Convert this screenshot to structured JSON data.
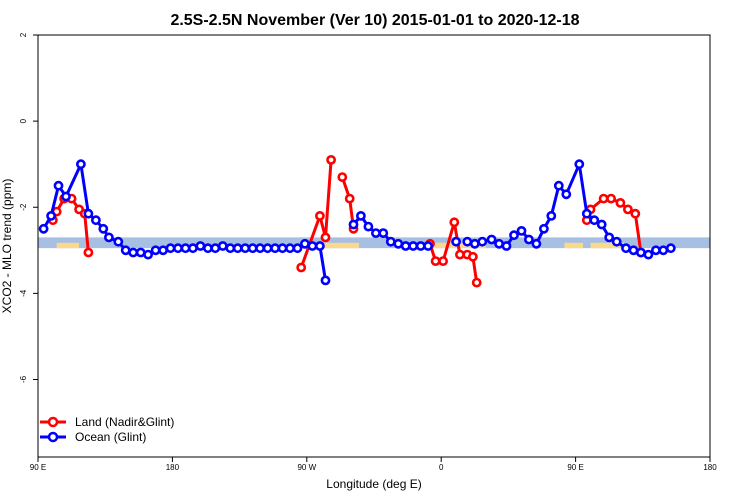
{
  "chart_data": {
    "type": "line",
    "title": "2.5S-2.5N November (Ver 10)   2015-01-01 to 2020-12-18",
    "xlabel": "Longitude (deg E)",
    "ylabel": "XCO2 - MLO trend (ppm)",
    "xlim": [
      90,
      450
    ],
    "ylim": [
      -7.8,
      2.0
    ],
    "x_ticks": [
      {
        "value": 90,
        "label": "90 E"
      },
      {
        "value": 162,
        "label": "180"
      },
      {
        "value": 234,
        "label": "90 W"
      },
      {
        "value": 306,
        "label": "0"
      },
      {
        "value": 378,
        "label": "90 E"
      },
      {
        "value": 450,
        "label": "180"
      }
    ],
    "y_ticks": [
      {
        "value": 2,
        "label": "2"
      },
      {
        "value": 0,
        "label": "0"
      },
      {
        "value": -2,
        "label": "-2"
      },
      {
        "value": -4,
        "label": "-4"
      },
      {
        "value": -6,
        "label": "-6"
      }
    ],
    "legend_position": "bottom-left",
    "band": {
      "y_min": -2.95,
      "y_max": -2.7,
      "ocean_color": "#a7bfe2",
      "land_color": "#fbd88a"
    },
    "series": [
      {
        "name": "Land (Nadir&Glint)",
        "color": "#ff0000",
        "segments": [
          [
            [
              98,
              -2.3
            ],
            [
              100,
              -2.1
            ],
            [
              104,
              -1.8
            ],
            [
              108,
              -1.8
            ],
            [
              112,
              -2.05
            ],
            [
              115,
              -2.15
            ],
            [
              117,
              -3.05
            ]
          ],
          [
            [
              231,
              -3.4
            ],
            [
              241,
              -2.2
            ],
            [
              244,
              -2.7
            ],
            [
              247,
              -0.9
            ]
          ],
          [
            [
              253,
              -1.3
            ],
            [
              257,
              -1.8
            ],
            [
              259,
              -2.5
            ]
          ],
          [
            [
              300,
              -2.85
            ],
            [
              303,
              -3.25
            ],
            [
              307,
              -3.25
            ],
            [
              313,
              -2.35
            ],
            [
              316,
              -3.1
            ],
            [
              320,
              -3.1
            ],
            [
              323,
              -3.15
            ],
            [
              325,
              -3.75
            ]
          ],
          [
            [
              384,
              -2.3
            ],
            [
              386,
              -2.05
            ],
            [
              393,
              -1.8
            ],
            [
              397,
              -1.8
            ],
            [
              402,
              -1.9
            ],
            [
              406,
              -2.05
            ],
            [
              410,
              -2.15
            ],
            [
              413,
              -3.05
            ]
          ]
        ]
      },
      {
        "name": "Ocean (Glint)",
        "color": "#0000ff",
        "segments": [
          [
            [
              93,
              -2.5
            ],
            [
              97,
              -2.2
            ],
            [
              101,
              -1.5
            ],
            [
              105,
              -1.75
            ],
            [
              113,
              -1.0
            ],
            [
              117,
              -2.15
            ],
            [
              121,
              -2.3
            ],
            [
              125,
              -2.5
            ],
            [
              128,
              -2.7
            ],
            [
              133,
              -2.8
            ],
            [
              137,
              -3.0
            ],
            [
              141,
              -3.05
            ],
            [
              145,
              -3.05
            ],
            [
              149,
              -3.1
            ],
            [
              153,
              -3.0
            ],
            [
              157,
              -3.0
            ],
            [
              161,
              -2.95
            ],
            [
              165,
              -2.95
            ],
            [
              169,
              -2.95
            ],
            [
              173,
              -2.95
            ],
            [
              177,
              -2.9
            ],
            [
              181,
              -2.95
            ],
            [
              185,
              -2.95
            ],
            [
              189,
              -2.9
            ],
            [
              193,
              -2.95
            ],
            [
              197,
              -2.95
            ],
            [
              201,
              -2.95
            ],
            [
              205,
              -2.95
            ],
            [
              209,
              -2.95
            ],
            [
              213,
              -2.95
            ],
            [
              217,
              -2.95
            ],
            [
              221,
              -2.95
            ],
            [
              225,
              -2.95
            ],
            [
              229,
              -2.95
            ],
            [
              233,
              -2.85
            ],
            [
              237,
              -2.9
            ],
            [
              241,
              -2.9
            ],
            [
              244,
              -3.7
            ]
          ],
          [
            [
              259,
              -2.4
            ],
            [
              263,
              -2.2
            ],
            [
              267,
              -2.45
            ],
            [
              271,
              -2.6
            ],
            [
              275,
              -2.6
            ],
            [
              279,
              -2.8
            ],
            [
              283,
              -2.85
            ],
            [
              287,
              -2.9
            ],
            [
              291,
              -2.9
            ],
            [
              295,
              -2.9
            ],
            [
              299,
              -2.9
            ]
          ],
          [
            [
              314,
              -2.8
            ]
          ],
          [
            [
              320,
              -2.8
            ],
            [
              324,
              -2.85
            ],
            [
              328,
              -2.8
            ],
            [
              333,
              -2.75
            ],
            [
              337,
              -2.85
            ],
            [
              341,
              -2.9
            ],
            [
              345,
              -2.65
            ],
            [
              349,
              -2.55
            ],
            [
              353,
              -2.75
            ],
            [
              357,
              -2.85
            ],
            [
              361,
              -2.5
            ],
            [
              365,
              -2.2
            ],
            [
              369,
              -1.5
            ],
            [
              373,
              -1.7
            ],
            [
              380,
              -1.0
            ],
            [
              384,
              -2.15
            ],
            [
              388,
              -2.3
            ],
            [
              392,
              -2.4
            ],
            [
              396,
              -2.7
            ],
            [
              400,
              -2.8
            ],
            [
              405,
              -2.95
            ],
            [
              409,
              -3.0
            ],
            [
              413,
              -3.05
            ],
            [
              417,
              -3.1
            ],
            [
              421,
              -3.0
            ],
            [
              425,
              -3.0
            ],
            [
              429,
              -2.95
            ]
          ]
        ]
      }
    ]
  }
}
